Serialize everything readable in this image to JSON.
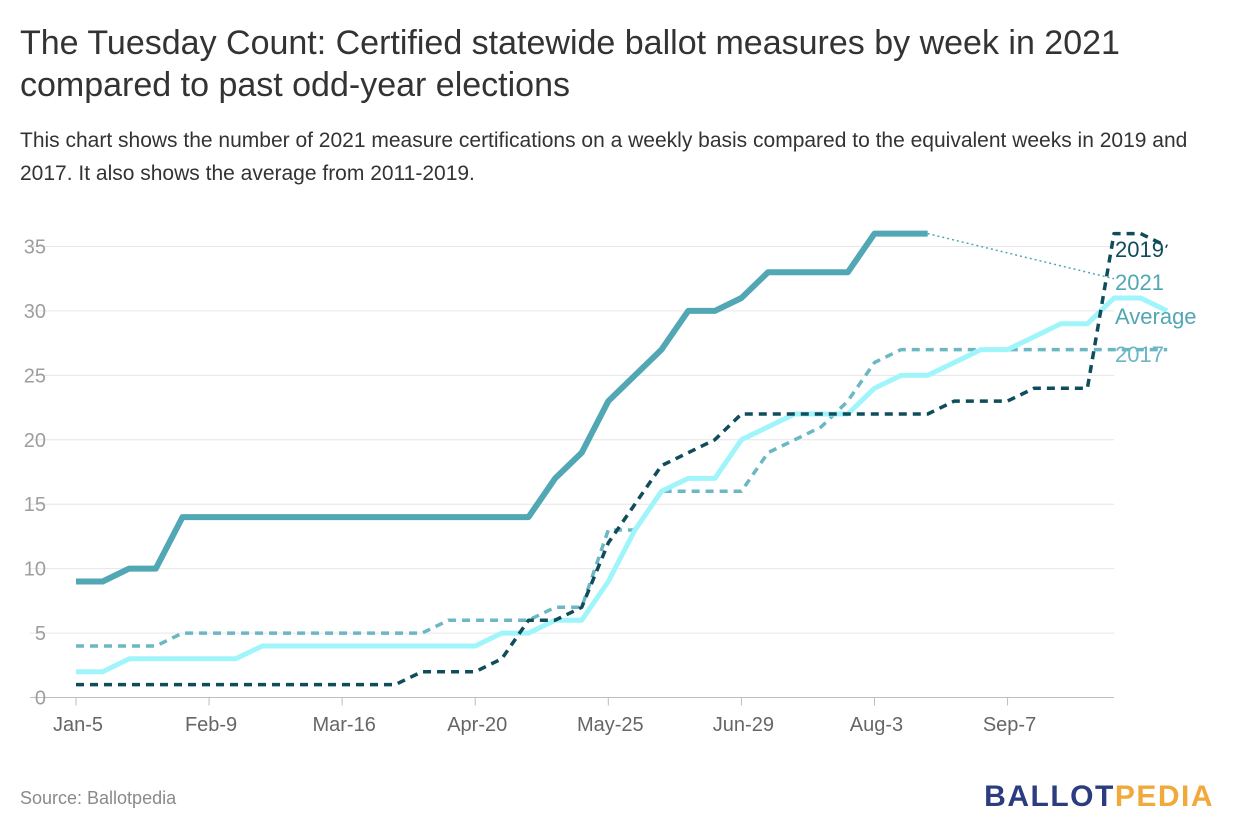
{
  "title": "The Tuesday Count: Certified statewide ballot measures by week in 2021 compared to past odd-year elections",
  "subtitle": "This chart shows the number of 2021 measure certifications on a weekly basis compared to the equivalent weeks in 2019 and 2017. It also shows the average from 2011-2019.",
  "source": "Source: Ballotpedia",
  "logo": {
    "part1": "BALLOT",
    "part2": "PEDIA"
  },
  "chart_data": {
    "type": "line",
    "x_tick_labels": [
      "Jan-5",
      "Feb-9",
      "Mar-16",
      "Apr-20",
      "May-25",
      "Jun-29",
      "Aug-3",
      "Sep-7"
    ],
    "x_tick_weeks": [
      0,
      5,
      10,
      15,
      20,
      25,
      30,
      35
    ],
    "x_range": [
      0,
      39
    ],
    "ylim": [
      0,
      35
    ],
    "yticks": [
      0,
      5,
      10,
      15,
      20,
      25,
      30,
      35
    ],
    "grid": true,
    "legend_position": "right (end-of-line labels)",
    "series": [
      {
        "name": "2021",
        "color": "#52a7b4",
        "style": "solid-thick",
        "values": [
          9,
          9,
          10,
          10,
          14,
          14,
          14,
          14,
          14,
          14,
          14,
          14,
          14,
          14,
          14,
          14,
          14,
          14,
          17,
          19,
          23,
          25,
          27,
          30,
          30,
          31,
          33,
          33,
          33,
          33,
          36,
          36,
          36
        ],
        "projection": {
          "from_week": 32,
          "to_week": 39,
          "from_value": 36,
          "to_value": 32.5
        }
      },
      {
        "name": "2019",
        "color": "#0f4c5c",
        "style": "dashed",
        "values": [
          1,
          1,
          1,
          1,
          1,
          1,
          1,
          1,
          1,
          1,
          1,
          1,
          1,
          2,
          2,
          2,
          3,
          6,
          6,
          7,
          12,
          15,
          18,
          19,
          20,
          22,
          22,
          22,
          22,
          22,
          22,
          22,
          22,
          23,
          23,
          23,
          24,
          24,
          24,
          36,
          36,
          35
        ]
      },
      {
        "name": "2017",
        "color": "#6bb7c4",
        "style": "dashed",
        "values": [
          4,
          4,
          4,
          4,
          5,
          5,
          5,
          5,
          5,
          5,
          5,
          5,
          5,
          5,
          6,
          6,
          6,
          6,
          7,
          7,
          13,
          13,
          16,
          16,
          16,
          16,
          19,
          20,
          21,
          23,
          26,
          27,
          27,
          27,
          27,
          27,
          27,
          27,
          27,
          27,
          27,
          27
        ]
      },
      {
        "name": "Average",
        "color": "#a0f5fb",
        "style": "solid",
        "values": [
          2,
          2,
          3,
          3,
          3,
          3,
          3,
          4,
          4,
          4,
          4,
          4,
          4,
          4,
          4,
          4,
          5,
          5,
          6,
          6,
          9,
          13,
          16,
          17,
          17,
          20,
          21,
          22,
          22,
          22,
          24,
          25,
          25,
          26,
          27,
          27,
          28,
          29,
          29,
          31,
          31,
          30
        ]
      }
    ]
  }
}
